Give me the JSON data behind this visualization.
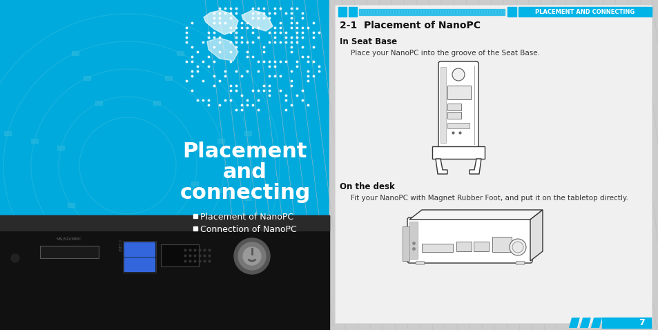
{
  "left_bg_color": "#00aadd",
  "cyan_blue": "#00b4e8",
  "black": "#111111",
  "dark_gray": "#222222",
  "title_text_line1": "Placement",
  "title_text_line2": "and",
  "title_text_line3": "connecting",
  "bullet1": "Placement of NanoPC",
  "bullet2": "Connection of NanoPC",
  "header_right": "PLACEMENT AND CONNECTING",
  "section_title": "2-1  Placement of NanoPC",
  "subsection1": "In Seat Base",
  "body1": "Place your NanoPC into the groove of the Seat Base.",
  "subsection2": "On the desk",
  "body2": "Fit your NanoPC with Magnet Rubber Foot, and put it on the tabletop directly.",
  "page_num": "7"
}
